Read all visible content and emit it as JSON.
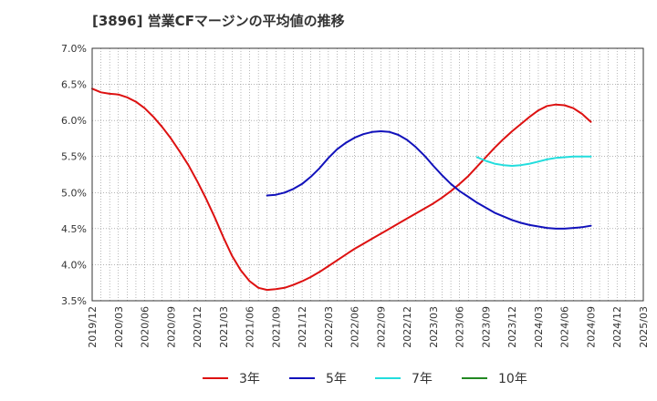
{
  "title": "[3896]  営業CFマージンの平均値の推移",
  "chart_data": {
    "type": "line",
    "title": "[3896]  営業CFマージンの平均値の推移",
    "xlabel": "",
    "ylabel": "",
    "ylim": [
      3.5,
      7.0
    ],
    "yticks": [
      "3.5%",
      "4.0%",
      "4.5%",
      "5.0%",
      "5.5%",
      "6.0%",
      "6.5%",
      "7.0%"
    ],
    "ytick_values": [
      3.5,
      4.0,
      4.5,
      5.0,
      5.5,
      6.0,
      6.5,
      7.0
    ],
    "xticks": [
      "2019/12",
      "2020/03",
      "2020/06",
      "2020/09",
      "2020/12",
      "2021/03",
      "2021/06",
      "2021/09",
      "2021/12",
      "2022/03",
      "2022/06",
      "2022/09",
      "2022/12",
      "2023/03",
      "2023/06",
      "2023/09",
      "2023/12",
      "2024/03",
      "2024/06",
      "2024/09",
      "2024/12",
      "2025/03"
    ],
    "grid": true,
    "legend_position": "bottom",
    "series": [
      {
        "name": "3年",
        "color": "#dd1111",
        "x": [
          "2019/12",
          "2020/01",
          "2020/02",
          "2020/03",
          "2020/04",
          "2020/05",
          "2020/06",
          "2020/07",
          "2020/08",
          "2020/09",
          "2020/10",
          "2020/11",
          "2020/12",
          "2021/01",
          "2021/02",
          "2021/03",
          "2021/04",
          "2021/05",
          "2021/06",
          "2021/07",
          "2021/08",
          "2021/09",
          "2021/10",
          "2021/11",
          "2021/12",
          "2022/01",
          "2022/02",
          "2022/03",
          "2022/04",
          "2022/05",
          "2022/06",
          "2022/07",
          "2022/08",
          "2022/09",
          "2022/10",
          "2022/11",
          "2022/12",
          "2023/01",
          "2023/02",
          "2023/03",
          "2023/04",
          "2023/05",
          "2023/06",
          "2023/07",
          "2023/08",
          "2023/09",
          "2023/10",
          "2023/11",
          "2023/12",
          "2024/01",
          "2024/02",
          "2024/03",
          "2024/04",
          "2024/05",
          "2024/06",
          "2024/07",
          "2024/08",
          "2024/09"
        ],
        "values": [
          6.44,
          6.39,
          6.37,
          6.36,
          6.32,
          6.26,
          6.17,
          6.05,
          5.91,
          5.75,
          5.57,
          5.38,
          5.16,
          4.92,
          4.66,
          4.38,
          4.12,
          3.92,
          3.77,
          3.68,
          3.65,
          3.66,
          3.68,
          3.72,
          3.77,
          3.83,
          3.9,
          3.98,
          4.06,
          4.14,
          4.22,
          4.29,
          4.36,
          4.43,
          4.5,
          4.57,
          4.64,
          4.71,
          4.78,
          4.85,
          4.93,
          5.02,
          5.12,
          5.23,
          5.36,
          5.49,
          5.62,
          5.74,
          5.85,
          5.95,
          6.05,
          6.14,
          6.2,
          6.22,
          6.21,
          6.17,
          6.09,
          5.98
        ]
      },
      {
        "name": "5年",
        "color": "#1111bb",
        "x": [
          "2021/08",
          "2021/09",
          "2021/10",
          "2021/11",
          "2021/12",
          "2022/01",
          "2022/02",
          "2022/03",
          "2022/04",
          "2022/05",
          "2022/06",
          "2022/07",
          "2022/08",
          "2022/09",
          "2022/10",
          "2022/11",
          "2022/12",
          "2023/01",
          "2023/02",
          "2023/03",
          "2023/04",
          "2023/05",
          "2023/06",
          "2023/07",
          "2023/08",
          "2023/09",
          "2023/10",
          "2023/11",
          "2023/12",
          "2024/01",
          "2024/02",
          "2024/03",
          "2024/04",
          "2024/05",
          "2024/06",
          "2024/07",
          "2024/08",
          "2024/09"
        ],
        "values": [
          4.96,
          4.97,
          5.0,
          5.05,
          5.12,
          5.22,
          5.34,
          5.48,
          5.6,
          5.69,
          5.76,
          5.81,
          5.84,
          5.85,
          5.84,
          5.8,
          5.73,
          5.63,
          5.51,
          5.37,
          5.24,
          5.12,
          5.02,
          4.94,
          4.86,
          4.79,
          4.72,
          4.67,
          4.62,
          4.58,
          4.55,
          4.53,
          4.51,
          4.5,
          4.5,
          4.51,
          4.52,
          4.54
        ]
      },
      {
        "name": "7年",
        "color": "#22dddd",
        "x": [
          "2023/08",
          "2023/09",
          "2023/10",
          "2023/11",
          "2023/12",
          "2024/01",
          "2024/02",
          "2024/03",
          "2024/04",
          "2024/05",
          "2024/06",
          "2024/07",
          "2024/08",
          "2024/09"
        ],
        "values": [
          5.49,
          5.44,
          5.4,
          5.38,
          5.37,
          5.38,
          5.4,
          5.43,
          5.46,
          5.48,
          5.49,
          5.5,
          5.5,
          5.5
        ]
      },
      {
        "name": "10年",
        "color": "#228822",
        "x": [],
        "values": []
      }
    ]
  }
}
